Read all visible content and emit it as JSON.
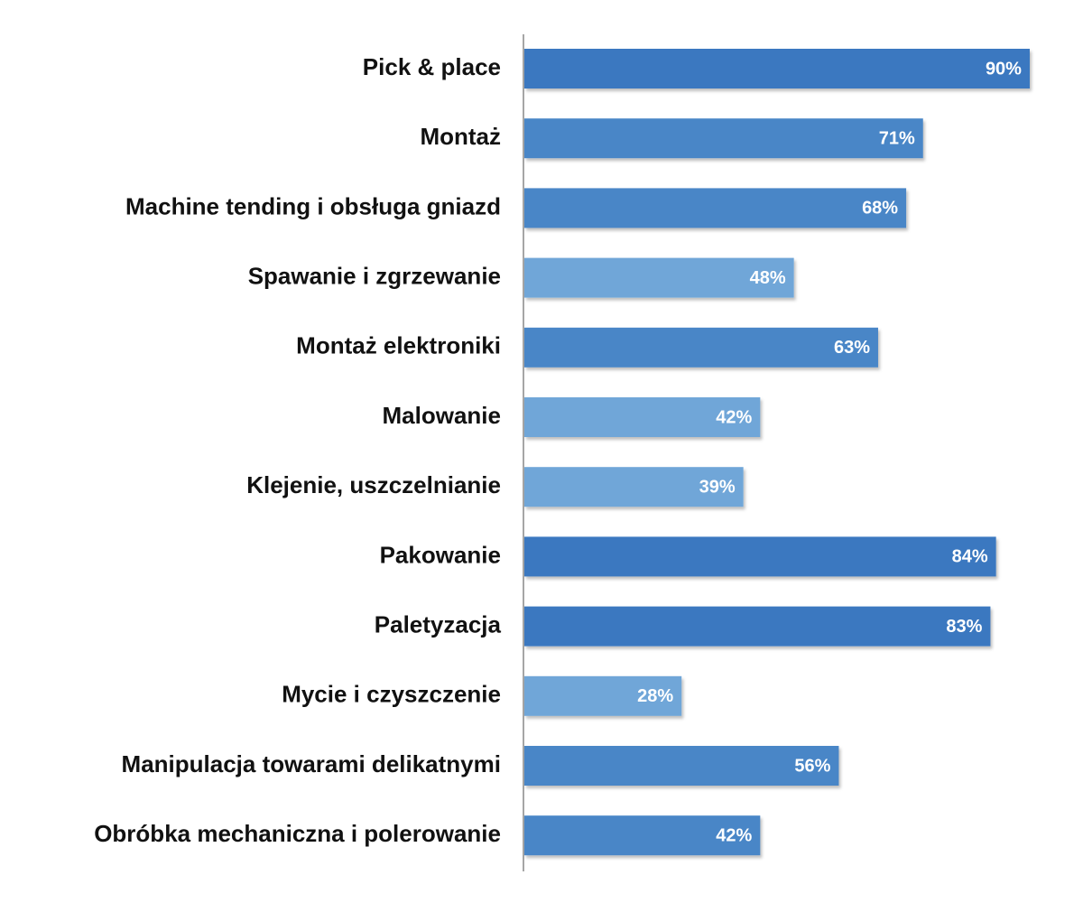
{
  "chart_data": {
    "type": "bar",
    "orientation": "horizontal",
    "categories": [
      "Pick & place",
      "Montaż",
      "Machine tending i obsługa gniazd",
      "Spawanie i zgrzewanie",
      "Montaż elektroniki",
      "Malowanie",
      "Klejenie, uszczelnianie",
      "Pakowanie",
      "Paletyzacja",
      "Mycie i czyszczenie",
      "Manipulacja towarami delikatnymi",
      "Obróbka mechaniczna i polerowanie"
    ],
    "values": [
      90,
      71,
      68,
      48,
      63,
      42,
      39,
      84,
      83,
      28,
      56,
      42
    ],
    "value_labels": [
      "90%",
      "71%",
      "68%",
      "48%",
      "63%",
      "42%",
      "39%",
      "84%",
      "83%",
      "28%",
      "56%",
      "42%"
    ],
    "colors": [
      "#3a78c0",
      "#4a86c7",
      "#4a86c7",
      "#70a6d8",
      "#4a86c7",
      "#70a6d8",
      "#70a6d8",
      "#3a78c0",
      "#3a78c0",
      "#70a6d8",
      "#4a86c7",
      "#4a86c7"
    ]
  }
}
